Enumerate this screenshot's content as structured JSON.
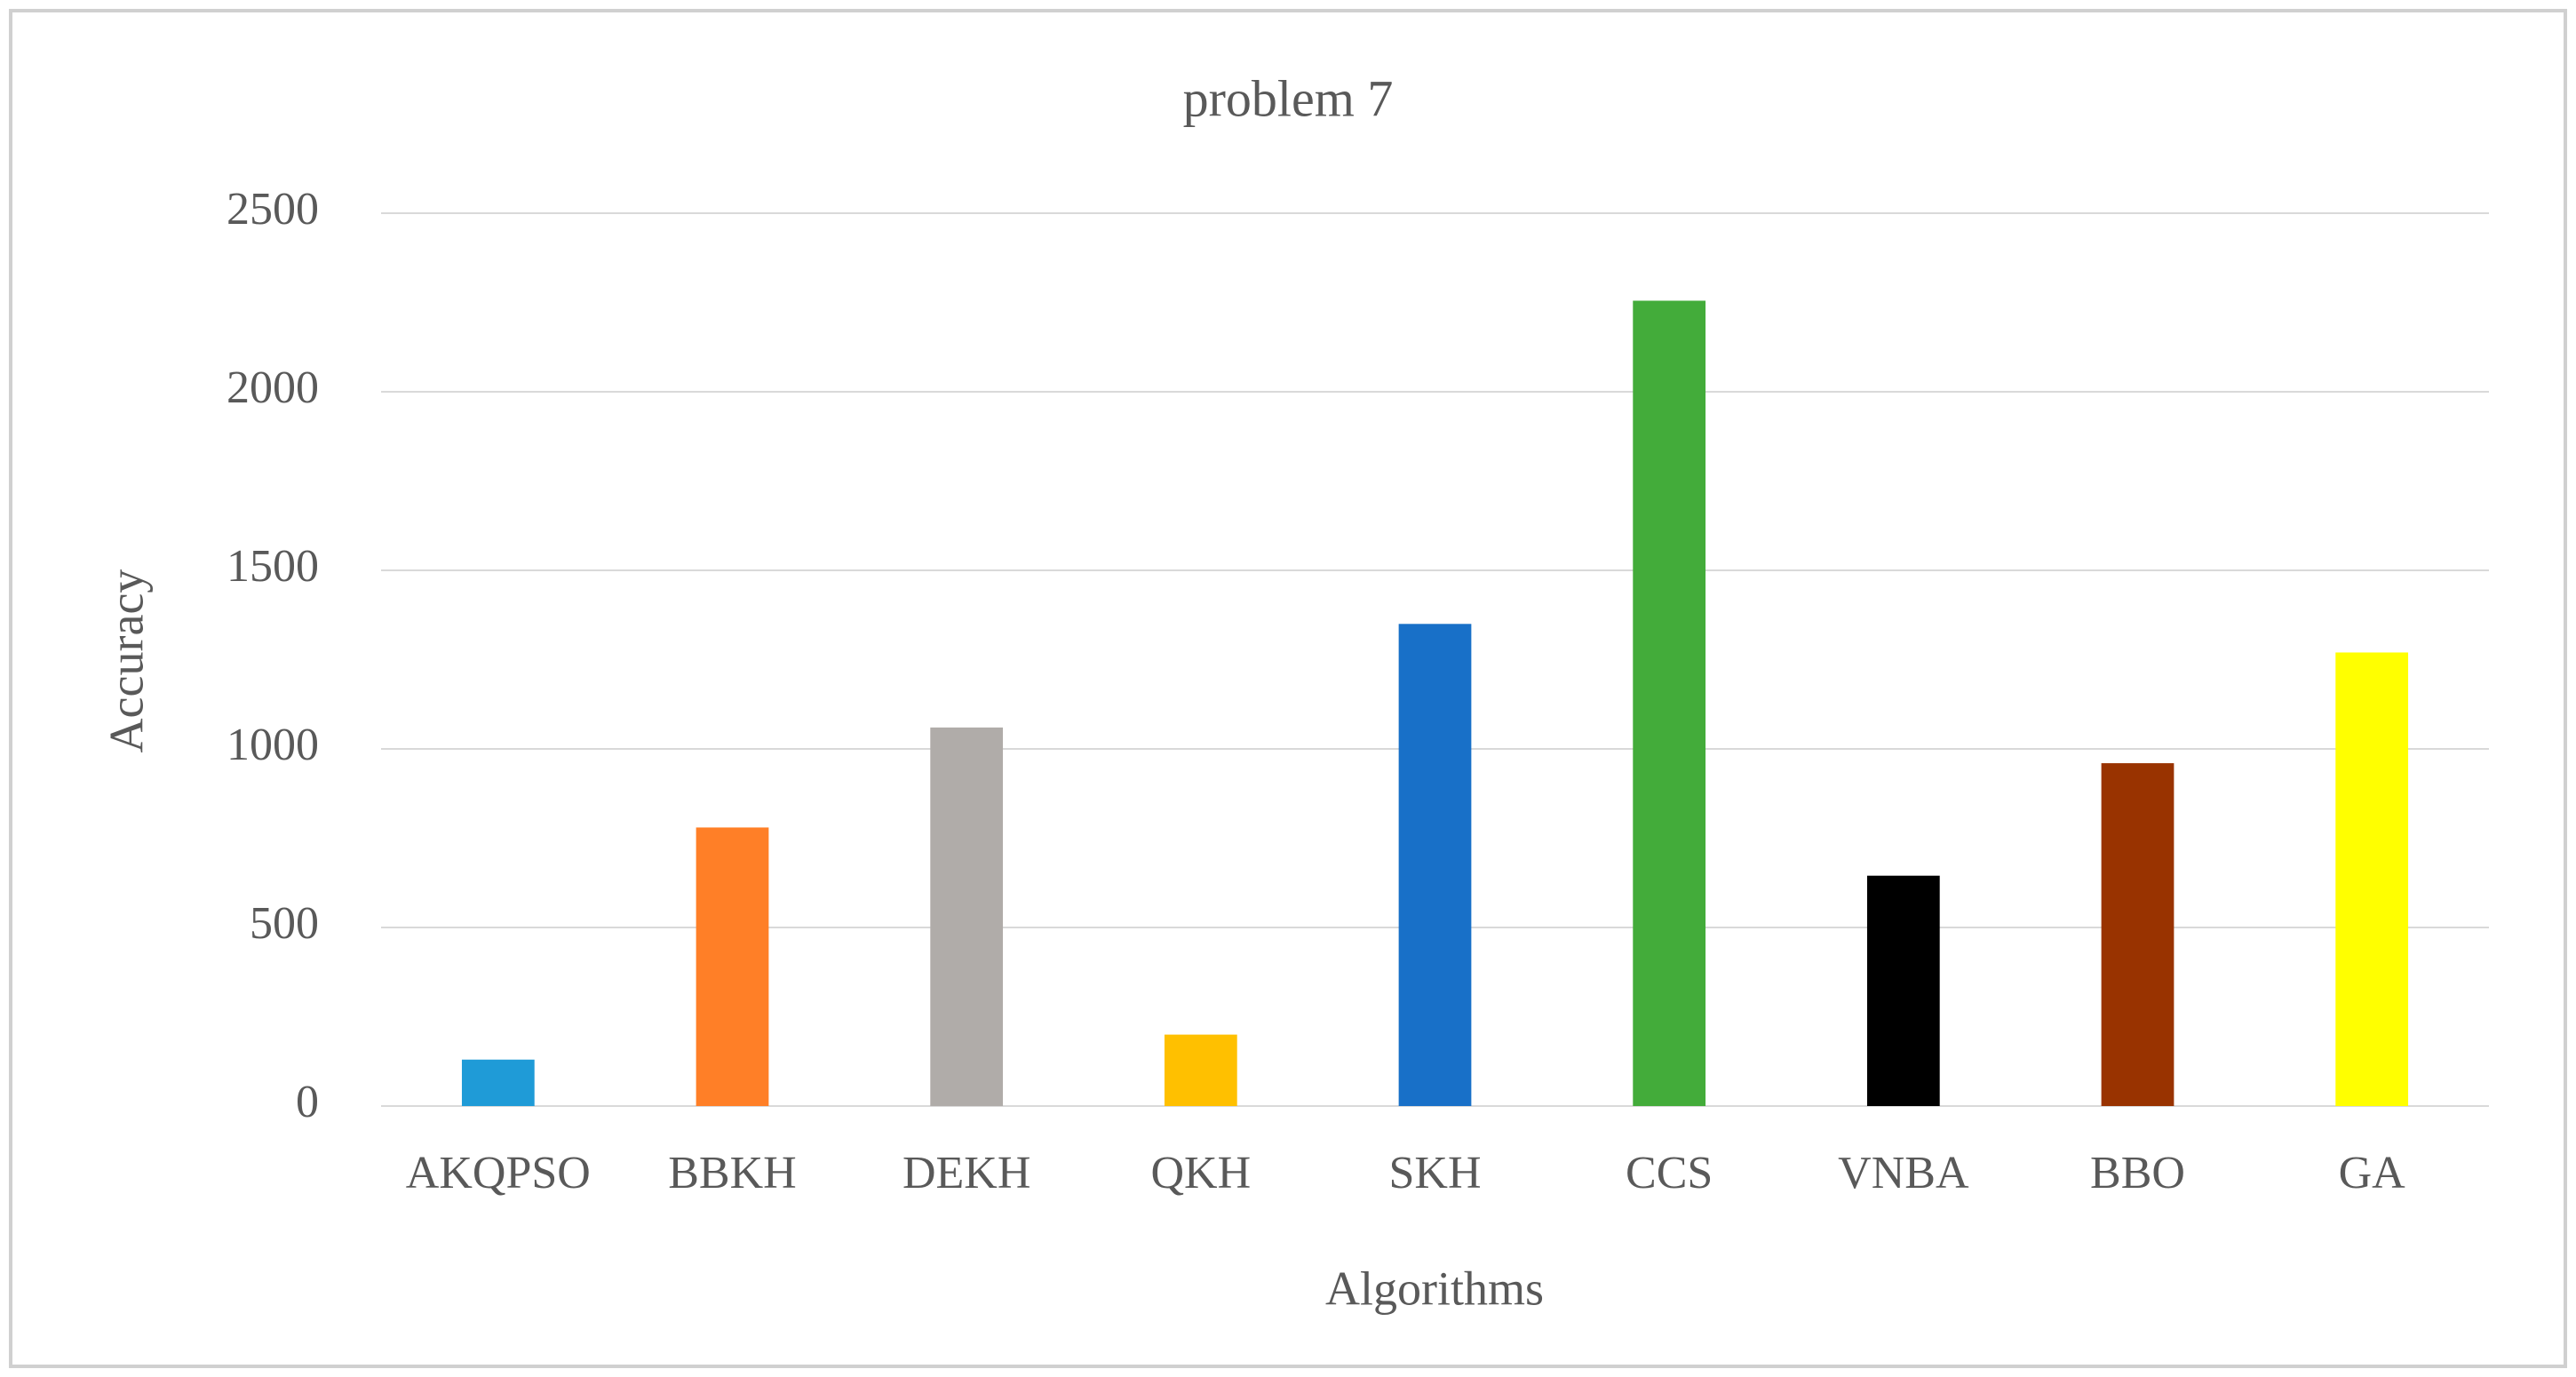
{
  "chart_data": {
    "type": "bar",
    "title": "problem 7",
    "x_label": "Algorithms",
    "y_label": "Accuracy",
    "categories": [
      "AKQPSO",
      "BBKH",
      "DEKH",
      "QKH",
      "SKH",
      "CCS",
      "VNBA",
      "BBO",
      "GA"
    ],
    "values": [
      130,
      780,
      1060,
      200,
      1350,
      2255,
      645,
      960,
      1270
    ],
    "colors": [
      "#1f9bd7",
      "#ff7f27",
      "#b0aca9",
      "#ffc000",
      "#1870c8",
      "#43ac3a",
      "#000000",
      "#993300",
      "#ffff00"
    ],
    "ylim": [
      0,
      2500
    ],
    "yticks": [
      0,
      500,
      1000,
      1500,
      2000,
      2500
    ],
    "grid": true
  }
}
